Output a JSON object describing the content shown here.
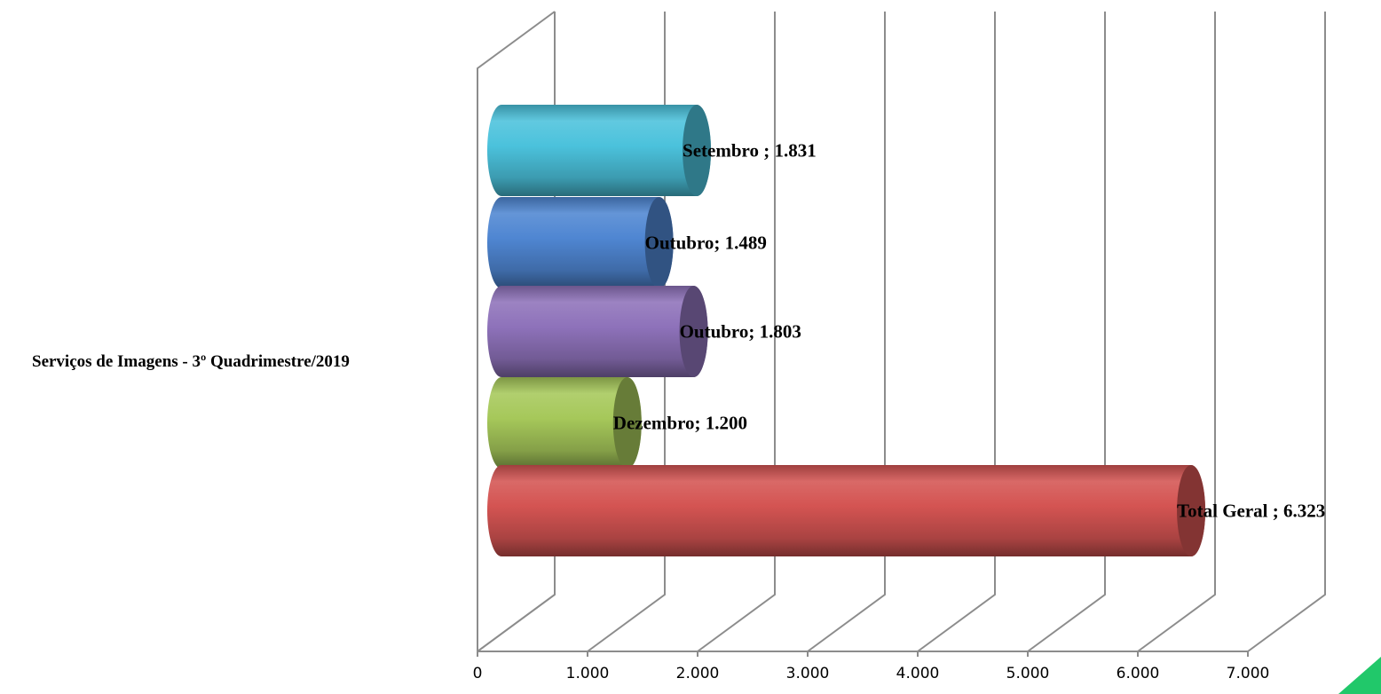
{
  "chart_data": {
    "type": "bar",
    "orientation": "horizontal",
    "style": "3d-cylinder",
    "category": "Serviços de Imagens - 3º Quadrimestre/2019",
    "series": [
      {
        "name": "Setembro ",
        "label": "Setembro ; 1.831",
        "value": 1831,
        "color": "#4bc2dc"
      },
      {
        "name": "Outubro",
        "label": "Outubro; 1.489",
        "value": 1489,
        "color": "#4f86d2"
      },
      {
        "name": "Outubro",
        "label": "Outubro; 1.803",
        "value": 1803,
        "color": "#8e72ba"
      },
      {
        "name": "Dezembro",
        "label": "Dezembro; 1.200",
        "value": 1200,
        "color": "#a6c85a"
      },
      {
        "name": "Total Geral ",
        "label": "Total Geral ; 6.323",
        "value": 6323,
        "color": "#d45452"
      }
    ],
    "x_ticks": [
      "0",
      "1.000",
      "2.000",
      "3.000",
      "4.000",
      "5.000",
      "6.000",
      "7.000"
    ],
    "xlim": [
      0,
      7000
    ],
    "grid": true,
    "legend": "none"
  },
  "decor": {
    "corner_accent_color": "#21c86a"
  }
}
